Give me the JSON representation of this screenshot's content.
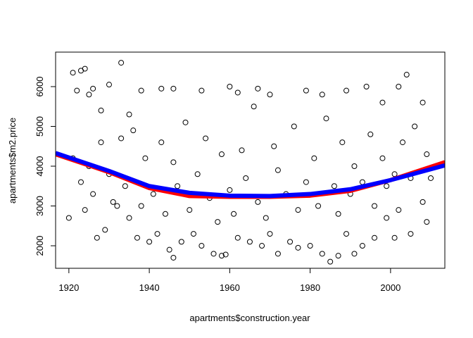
{
  "chart_data": {
    "type": "scatter",
    "x_label": "apartments$construction.year",
    "y_label": "apartments$m2.price",
    "xlim": [
      1916.7,
      2013.5
    ],
    "ylim": [
      1434,
      6867
    ],
    "xticks": [
      1920,
      1940,
      1960,
      1980,
      2000
    ],
    "yticks": [
      2000,
      3000,
      4000,
      5000,
      6000
    ],
    "point_color": "#000000",
    "x": [
      1921,
      1923,
      1924,
      1922,
      1925,
      1926,
      1928,
      1930,
      1933,
      1935,
      1938,
      1943,
      1946,
      1953,
      1960,
      1962,
      1967,
      1970,
      1979,
      1983,
      1989,
      1994,
      1998,
      2002,
      2004,
      2008,
      1920,
      1924,
      1927,
      1929,
      1932,
      1935,
      1937,
      1940,
      1942,
      1945,
      1946,
      1948,
      1951,
      1953,
      1956,
      1958,
      1959,
      1962,
      1965,
      1968,
      1970,
      1972,
      1975,
      1977,
      1980,
      1983,
      1985,
      1987,
      1989,
      1991,
      1993,
      1996,
      1999,
      2001,
      2005,
      2009,
      1921,
      1923,
      1925,
      1926,
      1928,
      1930,
      1931,
      1933,
      1934,
      1936,
      1938,
      1939,
      1941,
      1943,
      1944,
      1946,
      1947,
      1949,
      1950,
      1952,
      1954,
      1955,
      1957,
      1958,
      1960,
      1961,
      1963,
      1964,
      1966,
      1967,
      1969,
      1971,
      1972,
      1974,
      1976,
      1977,
      1979,
      1981,
      1982,
      1984,
      1986,
      1987,
      1988,
      1990,
      1991,
      1993,
      1995,
      1996,
      1998,
      1999,
      2001,
      2002,
      2003,
      2005,
      2006,
      2008,
      2009,
      2010
    ],
    "y": [
      6350,
      6400,
      6450,
      5900,
      5800,
      5950,
      5400,
      6050,
      6600,
      5300,
      5900,
      5950,
      5950,
      5900,
      6000,
      5850,
      5950,
      5800,
      5900,
      5800,
      5900,
      6000,
      5600,
      6000,
      6300,
      5600,
      2700,
      2900,
      2200,
      2400,
      3000,
      2700,
      2200,
      2100,
      2300,
      1900,
      1700,
      2100,
      2300,
      2000,
      1800,
      1750,
      1780,
      2200,
      2100,
      2000,
      2300,
      1800,
      2100,
      1950,
      2000,
      1800,
      1600,
      1750,
      2300,
      1800,
      2000,
      2200,
      2700,
      2200,
      2300,
      2600,
      4200,
      3600,
      4000,
      3300,
      4600,
      3800,
      3100,
      4700,
      3500,
      4900,
      3000,
      4200,
      3300,
      4600,
      2800,
      4100,
      3500,
      5100,
      2900,
      3800,
      4700,
      3200,
      2600,
      4300,
      3400,
      2800,
      4400,
      3700,
      5500,
      3100,
      2700,
      4500,
      3900,
      3300,
      5000,
      2900,
      3600,
      4200,
      3000,
      5200,
      3500,
      2800,
      4600,
      3300,
      4000,
      3600,
      4800,
      3000,
      4200,
      3500,
      3800,
      2900,
      4600,
      3700,
      5000,
      3100,
      4300,
      3700
    ],
    "lines": [
      {
        "color": "#ff0000",
        "x": [
          1916.7,
          1930,
          1940,
          1950,
          1960,
          1970,
          1980,
          1990,
          2000,
          2013.5
        ],
        "values": [
          4300,
          3850,
          3450,
          3250,
          3230,
          3230,
          3260,
          3380,
          3650,
          4100
        ]
      },
      {
        "color": "#0000ff",
        "x": [
          1916.7,
          1930,
          1940,
          1950,
          1960,
          1970,
          1980,
          1990,
          2000,
          2013.5
        ],
        "values": [
          4330,
          3880,
          3500,
          3330,
          3260,
          3250,
          3300,
          3420,
          3650,
          4020
        ]
      }
    ]
  }
}
